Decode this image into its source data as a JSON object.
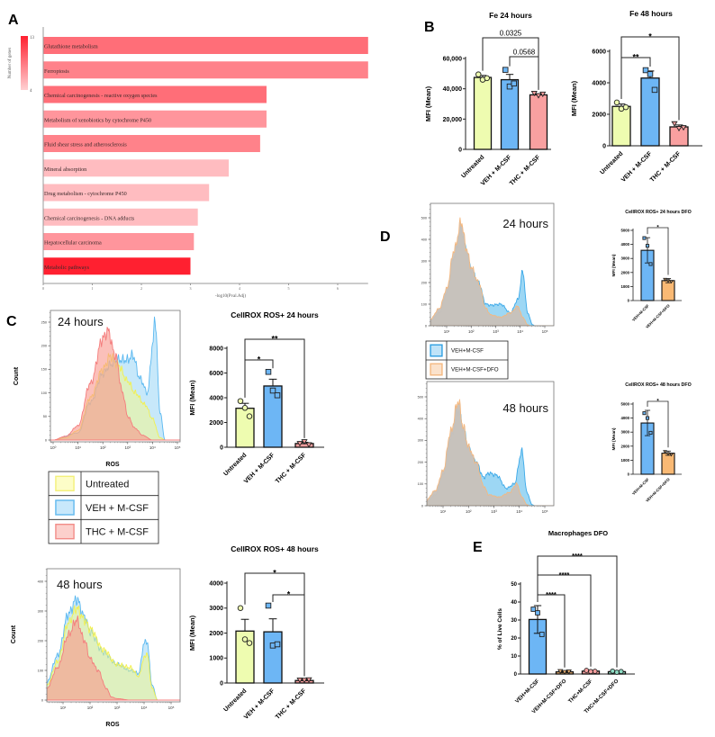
{
  "panel_labels": [
    "A",
    "B",
    "C",
    "D",
    "E"
  ],
  "chart_data": {
    "A_pathways": {
      "type": "bar",
      "orientation": "horizontal",
      "xlabel": "-log10(Pval.Adj)",
      "xlim": [
        0,
        6.62
      ],
      "xticks": [
        0,
        1,
        2,
        3,
        4,
        5,
        6
      ],
      "xtick_labels": [
        "0",
        "1",
        "2",
        "3",
        "4",
        "5",
        "6"
      ],
      "categories": [
        "Glutathione metabolism",
        "Ferroptosis",
        "Chemical carcinogenesis - reactive oxygen species",
        "Metabolism of xenobiotics by cytochrome P450",
        "Fluid shear stress and atherosclerosis",
        "Mineral absorption",
        "Drug metabolism - cytochrome P450",
        "Chemical carcinogenesis - DNA adducts",
        "Hepatocellular carcinoma",
        "Metabolic pathways"
      ],
      "values": [
        6.62,
        6.62,
        4.55,
        4.55,
        4.42,
        3.78,
        3.38,
        3.15,
        3.07,
        3.0
      ],
      "gene_counts": [
        9,
        8,
        9,
        7,
        8,
        5,
        5,
        5,
        7,
        13
      ],
      "colorbar": {
        "title": "Number of genes",
        "min": 4,
        "max": 13,
        "min_label": "4",
        "max_label": "13",
        "min_color": "#ffd0d2",
        "max_color": "#ff2030"
      }
    },
    "B_fe_24": {
      "type": "bar",
      "title": "Fe 24 hours",
      "ylabel": "MFI (Mean)",
      "ylim": [
        0,
        60000
      ],
      "yticks": [
        0,
        20000,
        40000,
        60000
      ],
      "ytick_labels": [
        "0",
        "20,000",
        "40,000",
        "60,000"
      ],
      "categories": [
        "Untreated",
        "VEH + M-CSF",
        "THC + M-CSF"
      ],
      "values": [
        47500,
        46000,
        36000
      ],
      "errors": [
        1300,
        3500,
        700
      ],
      "points": [
        [
          49500,
          46000,
          47000
        ],
        [
          52500,
          41500,
          43500
        ],
        [
          37000,
          35500,
          36500
        ]
      ],
      "markers": [
        "circle",
        "square",
        "triangle"
      ],
      "colors": [
        "#eefcb0",
        "#6db6f5",
        "#f9a0a0"
      ],
      "brackets": [
        {
          "from": 0,
          "to": 2,
          "label": "0.0325"
        },
        {
          "from": 1,
          "to": 2,
          "label": "0.0568"
        }
      ]
    },
    "B_fe_48": {
      "type": "bar",
      "title": "Fe 48 hours",
      "ylabel": "MFI (Mean)",
      "ylim": [
        0,
        6000
      ],
      "yticks": [
        0,
        2000,
        4000,
        6000
      ],
      "ytick_labels": [
        "0",
        "2000",
        "4000",
        "6000"
      ],
      "categories": [
        "Untreated",
        "VEH + M-CSF",
        "THC + M-CSF"
      ],
      "values": [
        2500,
        4300,
        1200
      ],
      "errors": [
        150,
        450,
        120
      ],
      "points": [
        [
          2750,
          2350,
          2450
        ],
        [
          4800,
          4550,
          3550
        ],
        [
          1400,
          1100,
          1150
        ]
      ],
      "markers": [
        "circle",
        "square",
        "triangle"
      ],
      "colors": [
        "#eefcb0",
        "#6db6f5",
        "#f9a0a0"
      ],
      "brackets": [
        {
          "from": 0,
          "to": 2,
          "label": "*"
        },
        {
          "from": 0,
          "to": 1,
          "label": "**"
        },
        {
          "from": 1,
          "to": 2,
          "label": "***"
        }
      ]
    },
    "C_hist_24": {
      "type": "area",
      "label": "24 hours",
      "ylabel": "Count",
      "xlabel": "ROS",
      "xscale": "log",
      "yticks": [
        0,
        50,
        100,
        150,
        200,
        250
      ],
      "ytick_labels": [
        "0",
        "50",
        "100",
        "150",
        "200",
        "250"
      ],
      "xticks": [
        0,
        1,
        2,
        3,
        4,
        5
      ],
      "xtick_labels": [
        "10⁰",
        "10¹",
        "10²",
        "10³",
        "10⁴",
        "10⁵"
      ],
      "series": [
        {
          "name": "VEH + M-CSF",
          "color": "#5ab8f0",
          "x": [
            0,
            1,
            1.5,
            2,
            2.3,
            2.6,
            3,
            3.2,
            3.5,
            3.8,
            4,
            4.1,
            4.3,
            4.5
          ],
          "y": [
            0,
            15,
            80,
            140,
            160,
            170,
            170,
            180,
            130,
            100,
            200,
            258,
            60,
            0
          ]
        },
        {
          "name": "Untreated",
          "color": "#f2f050",
          "x": [
            0,
            0.5,
            1,
            1.5,
            2,
            2.3,
            2.6,
            3,
            3.3,
            3.7,
            4,
            4.3,
            4.5
          ],
          "y": [
            0,
            5,
            20,
            90,
            150,
            178,
            160,
            125,
            100,
            75,
            45,
            5,
            0
          ]
        },
        {
          "name": "THC + M-CSF",
          "color": "#f47c7c",
          "x": [
            0,
            0.5,
            1,
            1.5,
            2,
            2.2,
            2.5,
            2.8,
            3,
            3.3,
            3.6,
            4
          ],
          "y": [
            0,
            8,
            30,
            120,
            215,
            232,
            180,
            100,
            50,
            25,
            10,
            0
          ]
        }
      ]
    },
    "C_hist_48": {
      "type": "area",
      "label": "48 hours",
      "ylabel": "Count",
      "xlabel": "ROS",
      "xscale": "log",
      "yticks": [
        0,
        100,
        200,
        300,
        400
      ],
      "ytick_labels": [
        "0",
        "100",
        "200",
        "300",
        "400"
      ],
      "xticks": [
        1,
        2,
        3,
        4,
        5
      ],
      "xtick_labels": [
        "10¹",
        "10²",
        "10³",
        "10⁴",
        "10⁵"
      ],
      "series": [
        {
          "name": "VEH + M-CSF",
          "color": "#5ab8f0",
          "x": [
            0.4,
            0.8,
            1.2,
            1.5,
            1.8,
            2,
            2.5,
            3,
            3.5,
            3.8,
            4,
            4.1,
            4.3,
            4.5
          ],
          "y": [
            60,
            150,
            290,
            340,
            280,
            230,
            160,
            120,
            100,
            90,
            190,
            200,
            50,
            0
          ]
        },
        {
          "name": "Untreated",
          "color": "#f2f050",
          "x": [
            0.4,
            0.8,
            1.2,
            1.5,
            1.8,
            2,
            2.5,
            3,
            3.5,
            3.8,
            4,
            4.1,
            4.3,
            4.5
          ],
          "y": [
            50,
            130,
            260,
            310,
            270,
            240,
            170,
            120,
            110,
            80,
            140,
            160,
            40,
            0
          ]
        },
        {
          "name": "THC + M-CSF",
          "color": "#f47c7c",
          "x": [
            0.4,
            0.8,
            1.2,
            1.5,
            1.8,
            2,
            2.3,
            2.6,
            2.8,
            3,
            3.5
          ],
          "y": [
            40,
            110,
            220,
            270,
            200,
            140,
            100,
            40,
            10,
            5,
            0
          ]
        }
      ]
    },
    "C_ros_24": {
      "type": "bar",
      "title": "CellROX ROS+ 24 hours",
      "ylabel": "MFI (Mean)",
      "ylim": [
        0,
        8000
      ],
      "yticks": [
        0,
        2000,
        4000,
        6000,
        8000
      ],
      "ytick_labels": [
        "0",
        "2000",
        "4000",
        "6000",
        "8000"
      ],
      "categories": [
        "Untreated",
        "VEH + M-CSF",
        "THC + M-CSF"
      ],
      "values": [
        3150,
        4950,
        300
      ],
      "errors": [
        400,
        550,
        100
      ],
      "points": [
        [
          3730,
          3180,
          2500
        ],
        [
          6090,
          4580,
          4200
        ],
        [
          300,
          450,
          200
        ]
      ],
      "markers": [
        "circle",
        "square",
        "triangle"
      ],
      "colors": [
        "#eefcb0",
        "#6db6f5",
        "#f9a0a0"
      ],
      "brackets": [
        {
          "from": 0,
          "to": 2,
          "label": "**"
        },
        {
          "from": 0,
          "to": 1,
          "label": "*"
        },
        {
          "from": 1,
          "to": 2,
          "label": "***"
        }
      ]
    },
    "C_ros_48": {
      "type": "bar",
      "title": "CellROX ROS+ 48 hours",
      "ylabel": "MFI (Mean)",
      "ylim": [
        0,
        4000
      ],
      "yticks": [
        0,
        1000,
        2000,
        3000,
        4000
      ],
      "ytick_labels": [
        "0",
        "1000",
        "2000",
        "3000",
        "4000"
      ],
      "categories": [
        "Untreated",
        "VEH + M-CSF",
        "THC + M-CSF"
      ],
      "values": [
        2080,
        2050,
        100
      ],
      "errors": [
        470,
        520,
        30
      ],
      "points": [
        [
          3000,
          1750,
          1600
        ],
        [
          3100,
          1500,
          1550
        ],
        [
          120,
          110,
          130
        ]
      ],
      "markers": [
        "circle",
        "square",
        "triangle"
      ],
      "colors": [
        "#eefcb0",
        "#6db6f5",
        "#f9a0a0"
      ],
      "brackets": [
        {
          "from": 0,
          "to": 2,
          "label": "*"
        },
        {
          "from": 1,
          "to": 2,
          "label": "*"
        }
      ]
    },
    "D_hist_24": {
      "type": "area",
      "label": "24 hours",
      "xscale": "log",
      "yticks": [
        0,
        100,
        200,
        300,
        400,
        500
      ],
      "ytick_labels": [
        "0",
        "100",
        "200",
        "300",
        "400",
        "500"
      ],
      "xticks": [
        1,
        2,
        3,
        4,
        5
      ],
      "xtick_labels": [
        "10¹",
        "10²",
        "10³",
        "10⁴",
        "10⁵"
      ],
      "series": [
        {
          "name": "VEH+M-CSF",
          "color": "#3aa8e8",
          "x": [
            0.33,
            0.7,
            1,
            1.3,
            1.6,
            1.8,
            2,
            2.3,
            2.6,
            2.8,
            3.2,
            3.6,
            3.9,
            4.1,
            4.3,
            4.5,
            4.6
          ],
          "y": [
            20,
            60,
            150,
            320,
            440,
            350,
            260,
            200,
            100,
            95,
            100,
            60,
            120,
            250,
            60,
            5,
            0
          ]
        },
        {
          "name": "VEH+M-CSF+DFO",
          "color": "#f4b880",
          "x": [
            0.33,
            0.7,
            1,
            1.3,
            1.6,
            1.8,
            2,
            2.3,
            2.6,
            2.8,
            3.2,
            3.6,
            3.9,
            4.1,
            4.3,
            4.4
          ],
          "y": [
            30,
            80,
            170,
            350,
            480,
            360,
            270,
            200,
            80,
            50,
            40,
            60,
            90,
            40,
            5,
            0
          ]
        }
      ]
    },
    "D_hist_48": {
      "type": "area",
      "label": "48 hours",
      "xscale": "log",
      "yticks": [
        0,
        100,
        200,
        300,
        400,
        500
      ],
      "ytick_labels": [
        "0",
        "100",
        "200",
        "300",
        "400",
        "500"
      ],
      "xticks": [
        1,
        2,
        3,
        4,
        5
      ],
      "xtick_labels": [
        "10¹",
        "10²",
        "10³",
        "10⁴",
        "10⁵"
      ],
      "series": [
        {
          "name": "VEH+M-CSF",
          "color": "#3aa8e8",
          "x": [
            0.33,
            0.7,
            1,
            1.3,
            1.6,
            1.8,
            2,
            2.3,
            2.6,
            2.8,
            3.1,
            3.5,
            3.8,
            4.1,
            4.3,
            4.5,
            4.6
          ],
          "y": [
            15,
            50,
            140,
            310,
            440,
            350,
            260,
            200,
            130,
            150,
            140,
            80,
            100,
            250,
            60,
            5,
            0
          ]
        },
        {
          "name": "VEH+M-CSF+DFO",
          "color": "#f4b880",
          "x": [
            0.33,
            0.7,
            1,
            1.3,
            1.6,
            1.8,
            2,
            2.3,
            2.6,
            2.8,
            3.2,
            3.6,
            3.9,
            4.1,
            4.3,
            4.4
          ],
          "y": [
            25,
            70,
            160,
            340,
            480,
            360,
            270,
            200,
            90,
            50,
            40,
            60,
            100,
            40,
            5,
            0
          ]
        }
      ]
    },
    "D_ros_24": {
      "type": "bar",
      "title": "CellROX ROS+ 24 hours DFO",
      "ylabel": "MFI (Mean)",
      "ylim": [
        0,
        5000
      ],
      "yticks": [
        0,
        1000,
        2000,
        3000,
        4000,
        5000
      ],
      "ytick_labels": [
        "0",
        "1000",
        "2000",
        "3000",
        "4000",
        "5000"
      ],
      "categories": [
        "VEH+M-CSF",
        "VEH+M-CSF+DFO"
      ],
      "values": [
        3580,
        1420
      ],
      "errors": [
        900,
        150
      ],
      "points": [
        [
          4450,
          3900,
          2600
        ],
        [
          1500,
          1400,
          1350
        ]
      ],
      "markers": [
        "square",
        "triangle"
      ],
      "colors": [
        "#6db6f5",
        "#f9b974"
      ],
      "brackets": [
        {
          "from": 0,
          "to": 1,
          "label": "*"
        }
      ]
    },
    "D_ros_48": {
      "type": "bar",
      "title": "CellROX ROS+ 48 hours DFO",
      "ylabel": "MFI (Mean)",
      "ylim": [
        0,
        5000
      ],
      "yticks": [
        0,
        1000,
        2000,
        3000,
        4000,
        5000
      ],
      "ytick_labels": [
        "0",
        "1000",
        "2000",
        "3000",
        "4000",
        "5000"
      ],
      "categories": [
        "VEH+M-CSF",
        "VEH+M-CSF+DFO"
      ],
      "values": [
        3650,
        1500
      ],
      "errors": [
        900,
        150
      ],
      "points": [
        [
          4350,
          4000,
          2950
        ],
        [
          1600,
          1450,
          1400
        ]
      ],
      "markers": [
        "square",
        "triangle"
      ],
      "colors": [
        "#6db6f5",
        "#f9b974"
      ],
      "brackets": [
        {
          "from": 0,
          "to": 1,
          "label": "*"
        }
      ]
    },
    "E_macrophages": {
      "type": "bar",
      "title": "Macrophages DFO",
      "ylabel": "% of Live Cells",
      "ylim": [
        0,
        50
      ],
      "yticks": [
        0,
        10,
        20,
        30,
        40,
        50
      ],
      "ytick_labels": [
        "0",
        "10",
        "20",
        "30",
        "40",
        "50"
      ],
      "categories": [
        "VEH+M-CSF",
        "VEH+M-CSF+DFO",
        "THC+M-CSF",
        "THC+M-CSF+DFO"
      ],
      "values": [
        30.3,
        1.2,
        1.6,
        1.3
      ],
      "errors": [
        7.7,
        0.4,
        0.5,
        0.4
      ],
      "points": [
        [
          36,
          34,
          22
        ],
        [
          1.5,
          1.0,
          1.3
        ],
        [
          2.0,
          1.4,
          1.5
        ],
        [
          1.6,
          1.0,
          1.4
        ]
      ],
      "markers": [
        "square",
        "triangle",
        "circle",
        "circle"
      ],
      "colors": [
        "#6db6f5",
        "#f9b974",
        "#f7a0a0",
        "#8fdcc4"
      ],
      "brackets": [
        {
          "from": 0,
          "to": 1,
          "label": "****"
        },
        {
          "from": 0,
          "to": 2,
          "label": "****"
        },
        {
          "from": 0,
          "to": 3,
          "label": "****"
        }
      ]
    }
  }
}
